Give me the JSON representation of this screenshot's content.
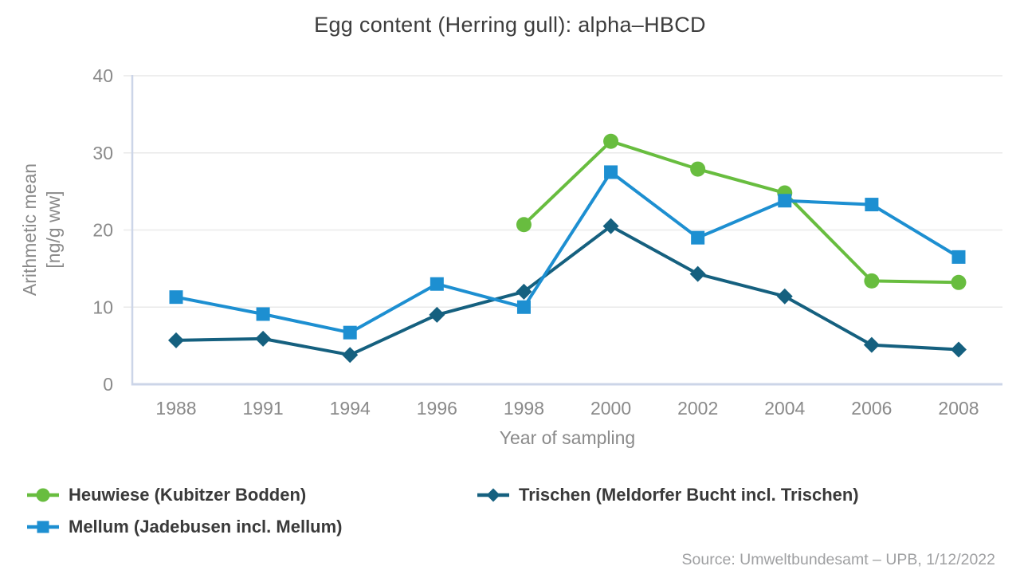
{
  "chart_data": {
    "type": "line",
    "title": "Egg content (Herring gull): alpha–HBCD",
    "xlabel": "Year of sampling",
    "ylabel_lines": [
      "Arithmetic mean",
      "[ng/g ww]"
    ],
    "categories": [
      "1988",
      "1991",
      "1994",
      "1996",
      "1998",
      "2000",
      "2002",
      "2004",
      "2006",
      "2008"
    ],
    "ylim": [
      0,
      40
    ],
    "yticks": [
      0,
      10,
      20,
      30,
      40
    ],
    "grid": true,
    "legend_position": "bottom",
    "series": [
      {
        "name": "Heuwiese (Kubitzer Bodden)",
        "marker": "circle",
        "color": "#68bd3f",
        "values": [
          null,
          null,
          null,
          null,
          20.7,
          31.5,
          27.9,
          24.8,
          13.4,
          13.2
        ]
      },
      {
        "name": "Trischen (Meldorfer Bucht incl. Trischen)",
        "marker": "diamond",
        "color": "#15607f",
        "values": [
          5.7,
          5.9,
          3.8,
          9.0,
          12.0,
          20.5,
          14.3,
          11.4,
          5.1,
          4.5
        ]
      },
      {
        "name": "Mellum (Jadebusen incl. Mellum)",
        "marker": "square",
        "color": "#1d8fd1",
        "values": [
          11.3,
          9.1,
          6.7,
          13.0,
          10.0,
          27.5,
          19.0,
          23.8,
          23.3,
          16.5
        ]
      }
    ],
    "colors": {
      "grid": "#e9e9e9",
      "axis_frame": "#ccd5e8"
    }
  },
  "source": "Source: Umweltbundesamt – UPB, 1/12/2022"
}
